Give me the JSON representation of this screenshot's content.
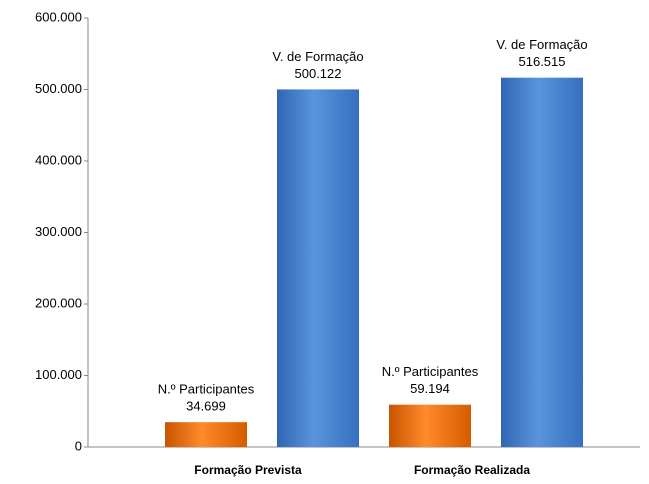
{
  "chart_data": {
    "type": "bar",
    "categories": [
      "Formação Prevista",
      "Formação Realizada"
    ],
    "series": [
      {
        "name": "N.º Participantes",
        "color": "#f07818",
        "values": [
          34699,
          59194
        ],
        "value_labels": [
          "34.699",
          "59.194"
        ]
      },
      {
        "name": "V. de Formação",
        "color": "#4a86d2",
        "values": [
          500122,
          516515
        ],
        "value_labels": [
          "500.122",
          "516.515"
        ]
      }
    ],
    "ylim": [
      0,
      600000
    ],
    "yticks": [
      0,
      {
        "value": 100000,
        "label": "100.000"
      },
      {
        "value": 200000,
        "label": "200.000"
      },
      {
        "value": 300000,
        "label": "300.000"
      },
      {
        "value": 400000,
        "label": "400.000"
      },
      {
        "value": 500000,
        "label": "500.000"
      },
      {
        "value": 600000,
        "label": "600.000"
      }
    ],
    "grid": false
  }
}
